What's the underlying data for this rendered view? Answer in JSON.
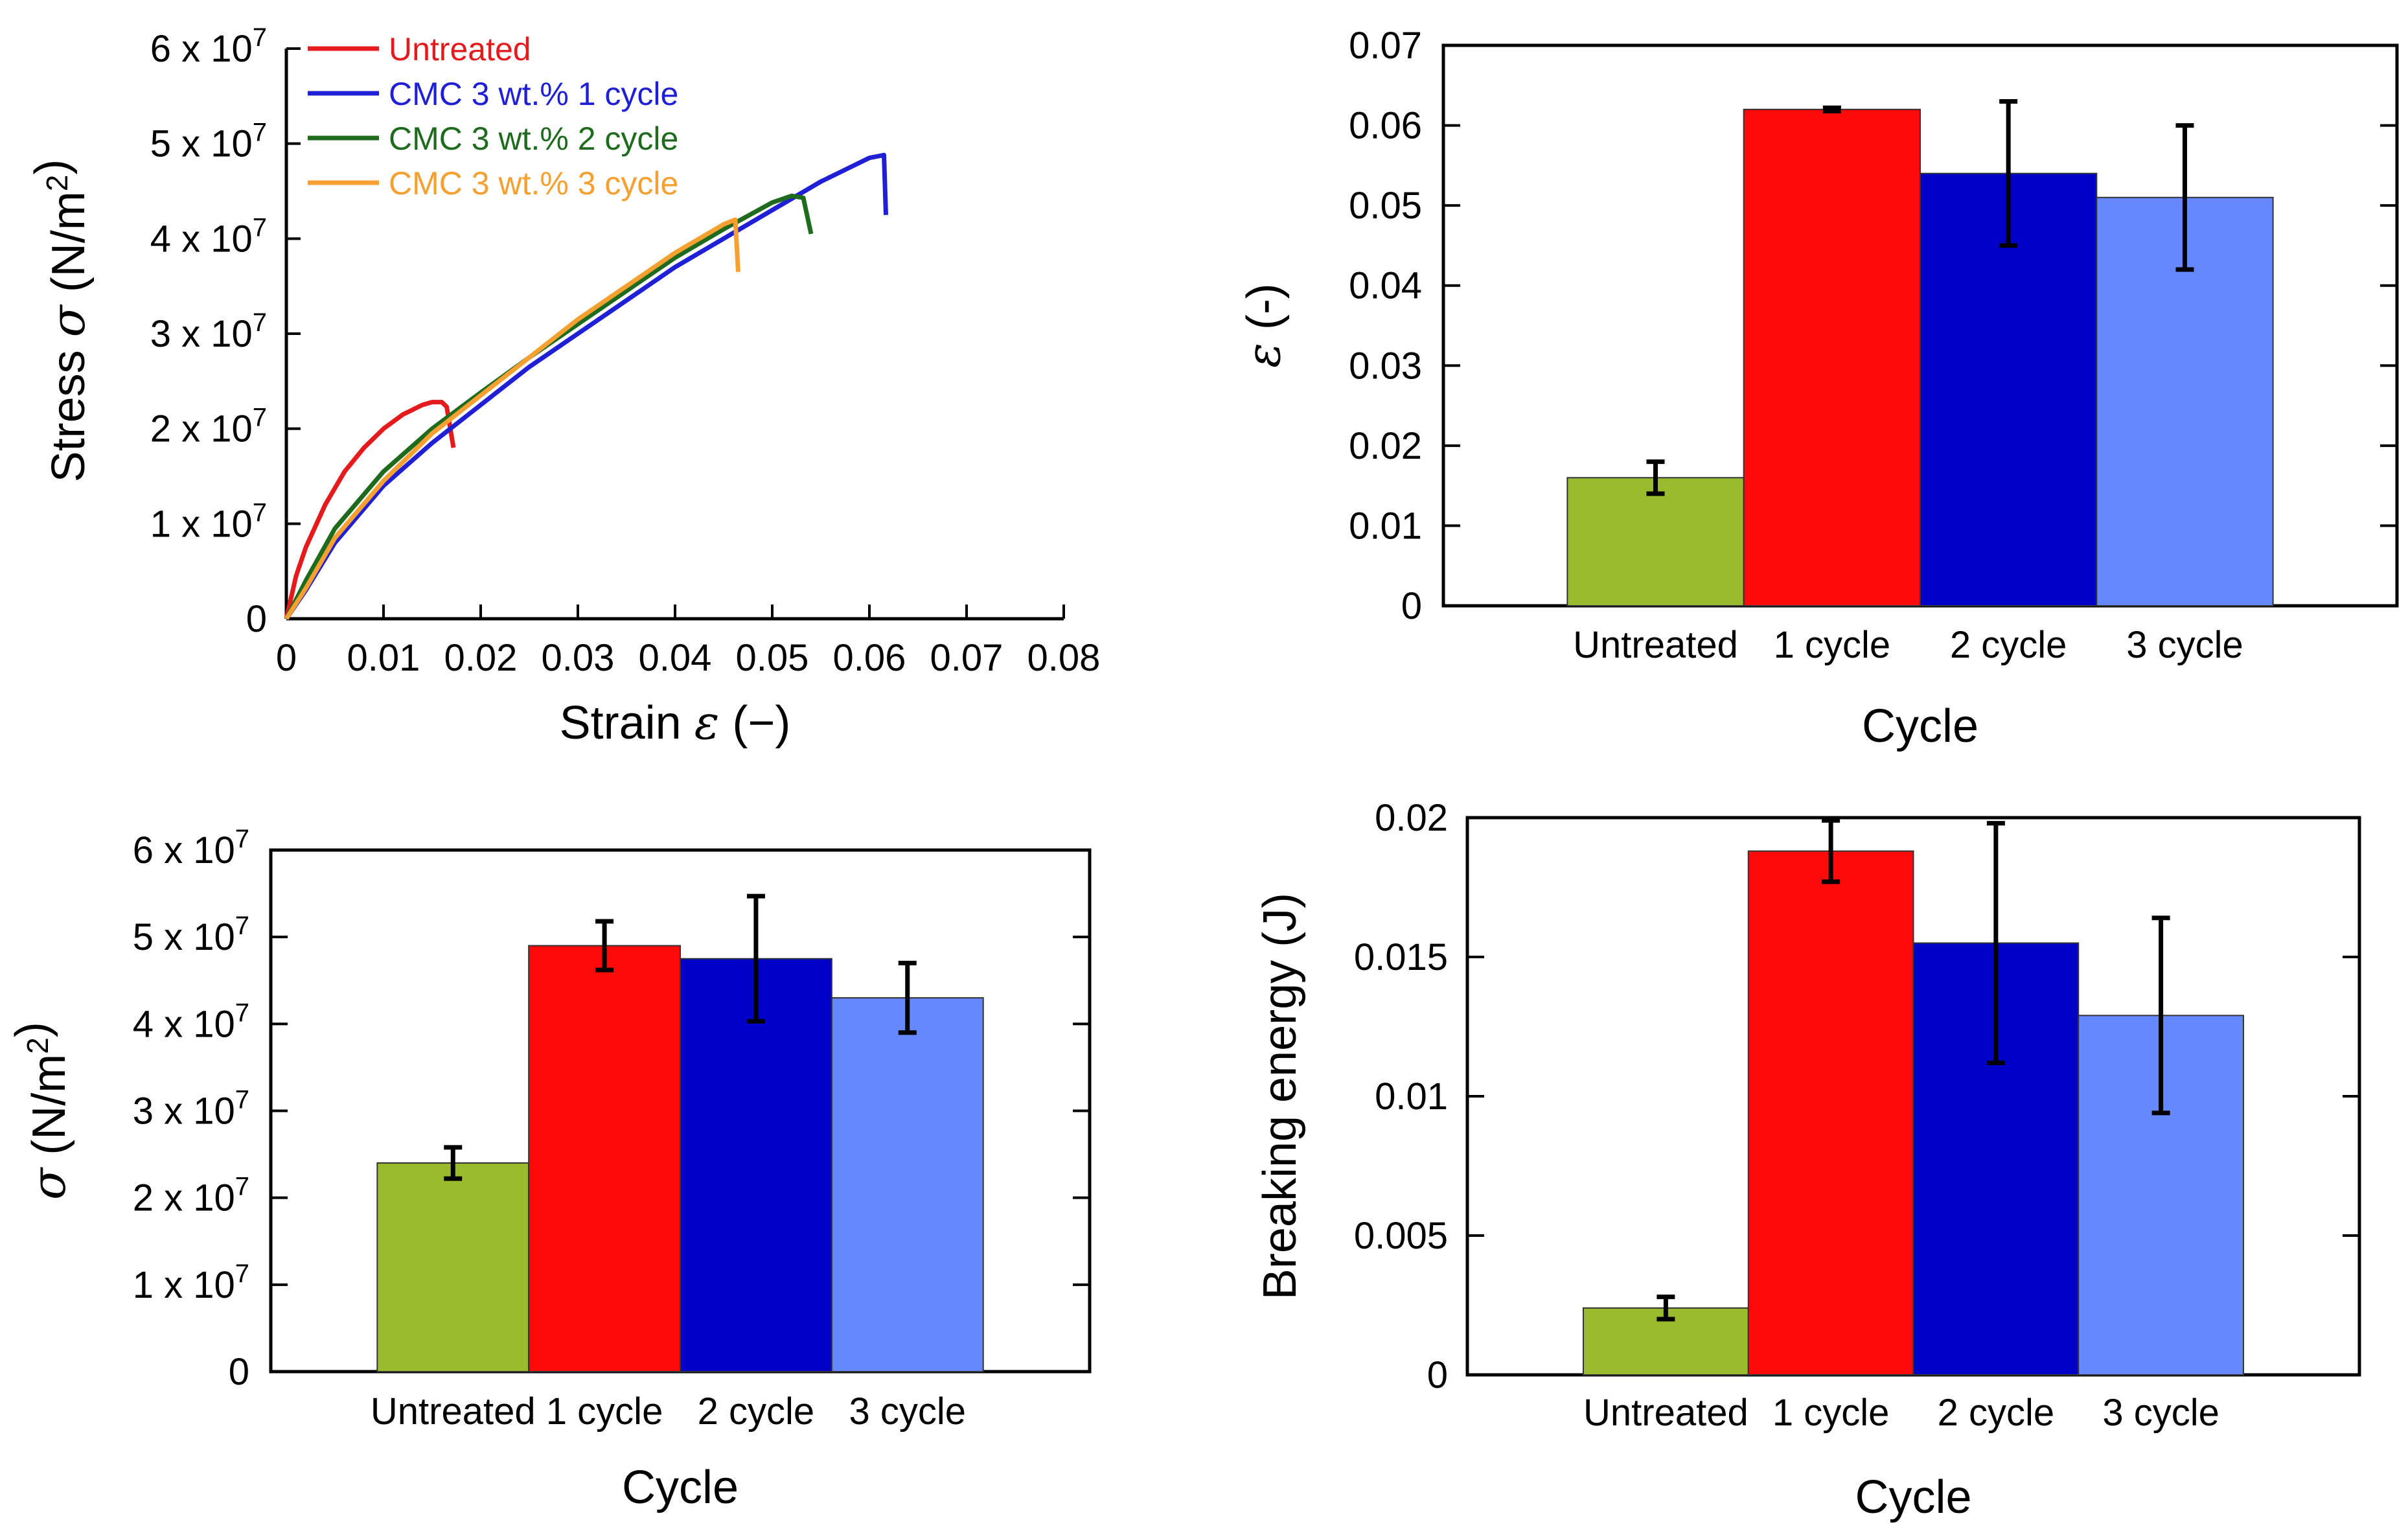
{
  "chart_data": [
    {
      "type": "line",
      "xlabel": "Strain ε (−)",
      "ylabel": "Stress σ (N/m²)",
      "xlim": [
        0,
        0.08
      ],
      "ylim": [
        0,
        60000000
      ],
      "xticks": [
        "0",
        "0.01",
        "0.02",
        "0.03",
        "0.04",
        "0.05",
        "0.06",
        "0.07",
        "0.08"
      ],
      "yticks": [
        "0",
        "1 x 10⁷",
        "2 x 10⁷",
        "3 x 10⁷",
        "4 x 10⁷",
        "5 x 10⁷",
        "6 x 10⁷"
      ],
      "legend_position": "top-left",
      "series": [
        {
          "name": "Untreated",
          "color": "#e41a1c",
          "points": [
            [
              0,
              0
            ],
            [
              0.001,
              4500000
            ],
            [
              0.002,
              7500000
            ],
            [
              0.004,
              12000000
            ],
            [
              0.006,
              15500000
            ],
            [
              0.008,
              18000000
            ],
            [
              0.01,
              20000000
            ],
            [
              0.012,
              21500000
            ],
            [
              0.014,
              22500000
            ],
            [
              0.015,
              22800000
            ],
            [
              0.016,
              22800000
            ],
            [
              0.0165,
              22300000
            ],
            [
              0.0172,
              18000000
            ]
          ]
        },
        {
          "name": "CMC 3 wt.% 1 cycle",
          "color": "#1f1fd6",
          "points": [
            [
              0,
              0
            ],
            [
              0.002,
              3000000
            ],
            [
              0.005,
              8000000
            ],
            [
              0.01,
              14000000
            ],
            [
              0.015,
              18500000
            ],
            [
              0.02,
              22500000
            ],
            [
              0.025,
              26500000
            ],
            [
              0.03,
              30000000
            ],
            [
              0.035,
              33500000
            ],
            [
              0.04,
              37000000
            ],
            [
              0.045,
              40000000
            ],
            [
              0.05,
              43000000
            ],
            [
              0.055,
              46000000
            ],
            [
              0.06,
              48500000
            ],
            [
              0.0615,
              48800000
            ],
            [
              0.0617,
              42500000
            ]
          ]
        },
        {
          "name": "CMC 3 wt.% 2 cycle",
          "color": "#1e6b1e",
          "points": [
            [
              0,
              0
            ],
            [
              0.002,
              4000000
            ],
            [
              0.005,
              9500000
            ],
            [
              0.01,
              15500000
            ],
            [
              0.015,
              20000000
            ],
            [
              0.02,
              23800000
            ],
            [
              0.025,
              27500000
            ],
            [
              0.03,
              31000000
            ],
            [
              0.035,
              34500000
            ],
            [
              0.04,
              38000000
            ],
            [
              0.045,
              41000000
            ],
            [
              0.05,
              43800000
            ],
            [
              0.052,
              44500000
            ],
            [
              0.0532,
              44300000
            ],
            [
              0.054,
              40500000
            ]
          ]
        },
        {
          "name": "CMC 3 wt.% 3 cycle",
          "color": "#f5a030",
          "points": [
            [
              0,
              0
            ],
            [
              0.002,
              3200000
            ],
            [
              0.005,
              8500000
            ],
            [
              0.01,
              14500000
            ],
            [
              0.015,
              19500000
            ],
            [
              0.02,
              23500000
            ],
            [
              0.025,
              27500000
            ],
            [
              0.03,
              31500000
            ],
            [
              0.035,
              35000000
            ],
            [
              0.04,
              38500000
            ],
            [
              0.045,
              41500000
            ],
            [
              0.0462,
              42000000
            ],
            [
              0.0465,
              36500000
            ]
          ]
        }
      ]
    },
    {
      "type": "bar",
      "xlabel": "Cycle",
      "ylabel": "ε (-)",
      "ylim": [
        0,
        0.07
      ],
      "yticks": [
        "0",
        "0.01",
        "0.02",
        "0.03",
        "0.04",
        "0.05",
        "0.06",
        "0.07"
      ],
      "categories": [
        "Untreated",
        "1 cycle",
        "2 cycle",
        "3 cycle"
      ],
      "values": [
        0.016,
        0.062,
        0.054,
        0.051
      ],
      "errors": [
        0.002,
        0.0002,
        0.009,
        0.009
      ],
      "colors": [
        "#9bbb2e",
        "#ff0a0a",
        "#0000c8",
        "#6688ff"
      ]
    },
    {
      "type": "bar",
      "xlabel": "Cycle",
      "ylabel": "σ (N/m²)",
      "ylim": [
        0,
        60000000
      ],
      "yticks": [
        "0",
        "1 x 10⁷",
        "2 x 10⁷",
        "3 x 10⁷",
        "4 x 10⁷",
        "5 x 10⁷",
        "6 x 10⁷"
      ],
      "categories": [
        "Untreated",
        "1 cycle",
        "2 cycle",
        "3 cycle"
      ],
      "values": [
        24000000,
        49000000,
        47500000,
        43000000
      ],
      "errors": [
        1800000,
        2800000,
        7200000,
        4000000
      ],
      "colors": [
        "#9bbb2e",
        "#ff0a0a",
        "#0000c8",
        "#6688ff"
      ]
    },
    {
      "type": "bar",
      "xlabel": "Cycle",
      "ylabel": "Breaking energy (J)",
      "ylim": [
        0,
        0.02
      ],
      "yticks": [
        "0",
        "0.005",
        "0.01",
        "0.015",
        "0.02"
      ],
      "categories": [
        "Untreated",
        "1 cycle",
        "2 cycle",
        "3 cycle"
      ],
      "values": [
        0.0024,
        0.0188,
        0.0155,
        0.0129
      ],
      "errors": [
        0.0004,
        0.0011,
        0.0043,
        0.0035
      ],
      "colors": [
        "#9bbb2e",
        "#ff0a0a",
        "#0000c8",
        "#6688ff"
      ]
    }
  ]
}
